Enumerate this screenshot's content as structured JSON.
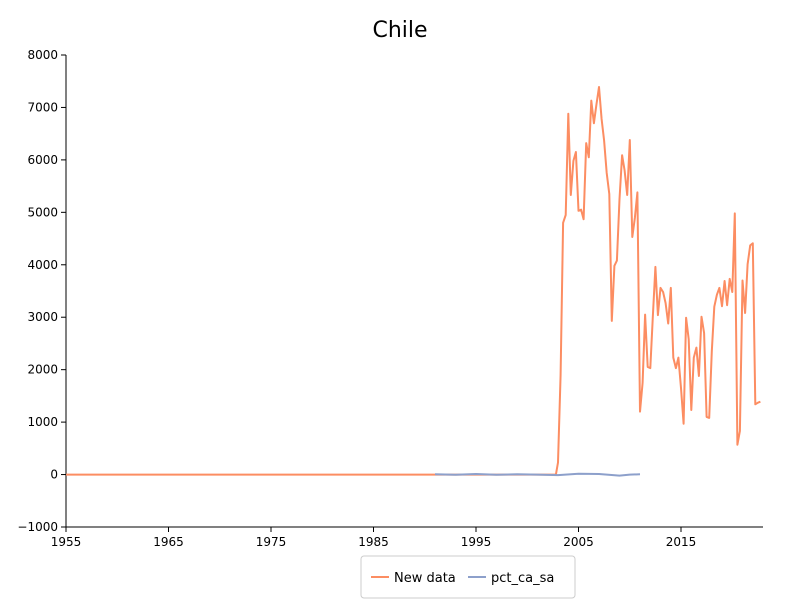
{
  "chart_data": {
    "type": "line",
    "title": "Chile",
    "xlabel": "",
    "ylabel": "",
    "xlim": [
      1955,
      2023
    ],
    "ylim": [
      -1000,
      8000
    ],
    "x_ticks": [
      "1955",
      "1965",
      "1975",
      "1985",
      "1995",
      "2005",
      "2015"
    ],
    "y_ticks": [
      "−1000",
      "0",
      "1000",
      "2000",
      "3000",
      "4000",
      "5000",
      "6000",
      "7000",
      "8000"
    ],
    "grid": false,
    "legend_position": "bottom-center",
    "series": [
      {
        "name": "New data",
        "color": "#fc8d62",
        "x": [
          1955,
          1965,
          1975,
          1985,
          1995,
          2000,
          2002.8,
          2003.0,
          2003.25,
          2003.5,
          2003.75,
          2004.0,
          2004.25,
          2004.5,
          2004.75,
          2005.0,
          2005.25,
          2005.5,
          2005.75,
          2006.0,
          2006.25,
          2006.5,
          2006.75,
          2007.0,
          2007.25,
          2007.5,
          2007.75,
          2008.0,
          2008.25,
          2008.5,
          2008.75,
          2009.0,
          2009.25,
          2009.5,
          2009.75,
          2010.0,
          2010.25,
          2010.5,
          2010.75,
          2011.0,
          2011.25,
          2011.5,
          2011.75,
          2012.0,
          2012.25,
          2012.5,
          2012.75,
          2013.0,
          2013.25,
          2013.5,
          2013.75,
          2014.0,
          2014.25,
          2014.5,
          2014.75,
          2015.0,
          2015.25,
          2015.5,
          2015.75,
          2016.0,
          2016.25,
          2016.5,
          2016.75,
          2017.0,
          2017.25,
          2017.5,
          2017.75,
          2018.0,
          2018.25,
          2018.5,
          2018.75,
          2019.0,
          2019.25,
          2019.5,
          2019.75,
          2020.0,
          2020.25,
          2020.5,
          2020.75,
          2021.0,
          2021.25,
          2021.5,
          2021.75,
          2022.0,
          2022.25,
          2022.5,
          2022.75
        ],
        "y": [
          0,
          0,
          0,
          0,
          0,
          0,
          0,
          230,
          1900,
          4800,
          4950,
          6880,
          5330,
          5980,
          6150,
          5030,
          5050,
          4870,
          6320,
          6050,
          7130,
          6700,
          7050,
          7390,
          6780,
          6370,
          5750,
          5350,
          2930,
          3980,
          4080,
          5250,
          6090,
          5800,
          5330,
          6380,
          4530,
          4900,
          5380,
          1200,
          1750,
          3050,
          2050,
          2030,
          3000,
          3960,
          3040,
          3560,
          3480,
          3270,
          2880,
          3560,
          2230,
          2030,
          2230,
          1650,
          970,
          2990,
          2580,
          1230,
          2230,
          2420,
          1880,
          3010,
          2700,
          1100,
          1080,
          2350,
          3200,
          3430,
          3560,
          3210,
          3690,
          3230,
          3730,
          3480,
          4980,
          570,
          830,
          3700,
          3080,
          4010,
          4370,
          4410,
          1340,
          1370,
          1390
        ]
      },
      {
        "name": "pct_ca_sa",
        "color": "#8da0cb",
        "x": [
          1991,
          1993,
          1995,
          1997,
          1999,
          2001,
          2003,
          2005,
          2007,
          2009,
          2010,
          2011
        ],
        "y": [
          5,
          -5,
          10,
          -5,
          5,
          0,
          -10,
          15,
          10,
          -20,
          0,
          5
        ]
      }
    ]
  }
}
